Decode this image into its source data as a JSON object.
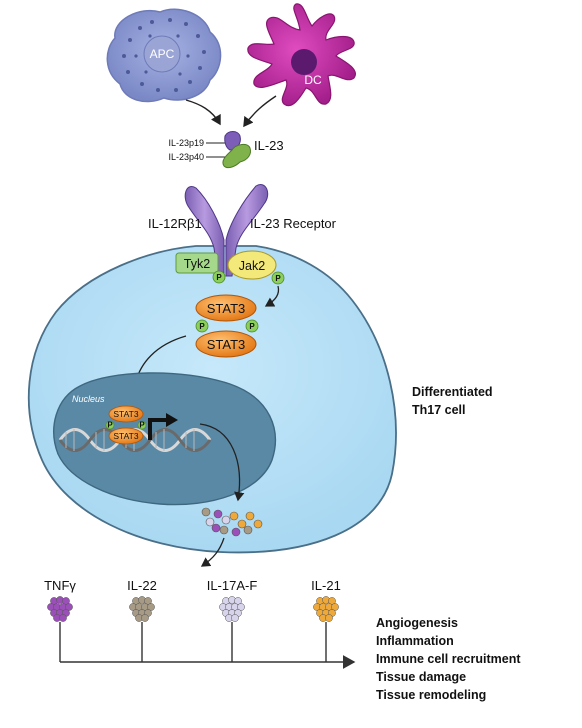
{
  "cells": {
    "apc_label": "APC",
    "dc_label": "DC"
  },
  "cytokine": {
    "name": "IL-23",
    "subunit_p19": "IL-23p19",
    "subunit_p40": "IL-23p40"
  },
  "receptor": {
    "chain_left": "IL-12Rβ1",
    "chain_right": "IL-23 Receptor"
  },
  "kinases": {
    "tyk2": "Tyk2",
    "jak2": "Jak2",
    "phospho": "P"
  },
  "stat": {
    "label": "STAT3"
  },
  "nucleus": {
    "label": "Nucleus"
  },
  "cell_label": {
    "line1": "Differentiated",
    "line2": "Th17 cell"
  },
  "secreted": [
    {
      "label": "TNFγ",
      "color": "#9b4fb8"
    },
    {
      "label": "IL-22",
      "color": "#a79b86"
    },
    {
      "label": "IL-17A-F",
      "color": "#d8d4ec"
    },
    {
      "label": "IL-21",
      "color": "#efa93a"
    }
  ],
  "effects": [
    "Angiogenesis",
    "Inflammation",
    "Immune cell recruitment",
    "Tissue damage",
    "Tissue remodeling"
  ],
  "colors": {
    "cell_fill": "#b5e0f7",
    "nucleus_fill": "#5a89a6",
    "receptor": "#9a7ac8",
    "stat3": "#f18a22",
    "phospho": "#8ccf5a",
    "jak2": "#f3e87a",
    "tyk2": "#a6d88b",
    "apc": "#8a99d2",
    "dc": "#c22aa3"
  }
}
